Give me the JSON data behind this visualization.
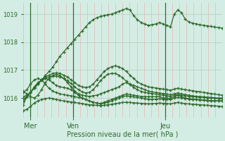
{
  "xlabel": "Pression niveau de la mer( hPa )",
  "bg_color": "#d4ede4",
  "line_color": "#2d6b2d",
  "ylim": [
    1015.3,
    1019.4
  ],
  "xlim": [
    0,
    56
  ],
  "yticks": [
    1016,
    1017,
    1018,
    1019
  ],
  "xtick_labels": [
    "Mer",
    "Ven",
    "Jeu"
  ],
  "xtick_positions": [
    2,
    14,
    40
  ],
  "vline_positions": [
    2,
    14,
    40
  ],
  "series": [
    [
      1015.75,
      1016.05,
      1016.2,
      1016.35,
      1016.5,
      1016.65,
      1016.8,
      1016.95,
      1017.1,
      1017.3,
      1017.5,
      1017.65,
      1017.8,
      1017.95,
      1018.1,
      1018.25,
      1018.4,
      1018.55,
      1018.7,
      1018.8,
      1018.87,
      1018.92,
      1018.95,
      1018.98,
      1019.0,
      1019.05,
      1019.1,
      1019.15,
      1019.2,
      1019.15,
      1018.95,
      1018.8,
      1018.7,
      1018.65,
      1018.6,
      1018.62,
      1018.65,
      1018.7,
      1018.65,
      1018.6,
      1018.55,
      1019.0,
      1019.15,
      1019.05,
      1018.82,
      1018.72,
      1018.68,
      1018.65,
      1018.62,
      1018.6,
      1018.58,
      1018.56,
      1018.54,
      1018.52,
      1018.5
    ],
    [
      1016.05,
      1016.1,
      1016.2,
      1016.35,
      1016.5,
      1016.65,
      1016.7,
      1016.65,
      1016.55,
      1016.45,
      1016.4,
      1016.38,
      1016.35,
      1016.3,
      1016.2,
      1016.1,
      1016.0,
      1015.95,
      1015.9,
      1015.85,
      1015.82,
      1015.8,
      1015.85,
      1015.9,
      1015.95,
      1016.0,
      1016.05,
      1016.1,
      1016.15,
      1016.12,
      1016.1,
      1016.08,
      1016.06,
      1016.05,
      1016.05,
      1016.05,
      1016.05,
      1016.05,
      1016.0,
      1016.0,
      1015.98,
      1016.05,
      1016.1,
      1016.05,
      1016.0,
      1015.98,
      1015.96,
      1015.95,
      1015.94,
      1015.93,
      1015.92,
      1015.91,
      1015.9,
      1015.9,
      1015.9
    ],
    [
      1016.2,
      1016.3,
      1016.5,
      1016.65,
      1016.7,
      1016.65,
      1016.5,
      1016.35,
      1016.25,
      1016.2,
      1016.15,
      1016.12,
      1016.1,
      1016.08,
      1016.05,
      1016.02,
      1016.0,
      1015.95,
      1015.9,
      1015.85,
      1015.82,
      1015.8,
      1015.82,
      1015.85,
      1015.9,
      1015.95,
      1016.0,
      1016.05,
      1016.08,
      1016.06,
      1016.04,
      1016.02,
      1016.0,
      1015.98,
      1015.96,
      1015.95,
      1015.96,
      1015.97,
      1015.96,
      1015.95,
      1015.94,
      1016.0,
      1016.02,
      1016.0,
      1015.98,
      1015.96,
      1015.95,
      1015.94,
      1015.93,
      1015.92,
      1015.91,
      1015.9,
      1015.9,
      1015.9,
      1015.9
    ],
    [
      1015.55,
      1015.6,
      1015.7,
      1015.82,
      1015.9,
      1015.95,
      1015.98,
      1016.0,
      1015.98,
      1015.95,
      1015.92,
      1015.9,
      1015.88,
      1015.86,
      1015.84,
      1015.82,
      1015.8,
      1015.78,
      1015.76,
      1015.75,
      1015.74,
      1015.73,
      1015.74,
      1015.76,
      1015.78,
      1015.8,
      1015.82,
      1015.84,
      1015.85,
      1015.84,
      1015.83,
      1015.82,
      1015.81,
      1015.8,
      1015.79,
      1015.8,
      1015.81,
      1015.82,
      1015.81,
      1015.8,
      1015.79,
      1015.82,
      1015.84,
      1015.82,
      1015.8,
      1015.79,
      1015.78,
      1015.77,
      1015.76,
      1015.75,
      1015.74,
      1015.73,
      1015.72,
      1015.71,
      1015.7
    ],
    [
      1016.25,
      1016.15,
      1016.05,
      1016.0,
      1016.1,
      1016.3,
      1016.55,
      1016.7,
      1016.8,
      1016.85,
      1016.8,
      1016.7,
      1016.55,
      1016.4,
      1016.25,
      1016.15,
      1016.1,
      1016.08,
      1016.06,
      1016.08,
      1016.1,
      1016.15,
      1016.2,
      1016.25,
      1016.3,
      1016.35,
      1016.4,
      1016.5,
      1016.55,
      1016.5,
      1016.45,
      1016.4,
      1016.35,
      1016.3,
      1016.25,
      1016.22,
      1016.2,
      1016.18,
      1016.16,
      1016.14,
      1016.12,
      1016.15,
      1016.18,
      1016.15,
      1016.12,
      1016.1,
      1016.08,
      1016.06,
      1016.05,
      1016.04,
      1016.03,
      1016.02,
      1016.01,
      1016.0,
      1016.0
    ],
    [
      1015.9,
      1016.05,
      1016.2,
      1016.4,
      1016.55,
      1016.65,
      1016.75,
      1016.82,
      1016.88,
      1016.9,
      1016.88,
      1016.82,
      1016.75,
      1016.65,
      1016.55,
      1016.45,
      1016.4,
      1016.38,
      1016.4,
      1016.5,
      1016.65,
      1016.8,
      1016.95,
      1017.05,
      1017.12,
      1017.15,
      1017.12,
      1017.05,
      1016.95,
      1016.82,
      1016.7,
      1016.58,
      1016.5,
      1016.45,
      1016.4,
      1016.38,
      1016.36,
      1016.34,
      1016.32,
      1016.3,
      1016.28,
      1016.32,
      1016.35,
      1016.32,
      1016.3,
      1016.28,
      1016.26,
      1016.24,
      1016.22,
      1016.2,
      1016.18,
      1016.16,
      1016.14,
      1016.12,
      1016.1
    ],
    [
      1015.95,
      1016.05,
      1016.2,
      1016.38,
      1016.52,
      1016.62,
      1016.7,
      1016.75,
      1016.78,
      1016.78,
      1016.75,
      1016.7,
      1016.62,
      1016.52,
      1016.4,
      1016.3,
      1016.22,
      1016.18,
      1016.2,
      1016.3,
      1016.45,
      1016.62,
      1016.75,
      1016.85,
      1016.88,
      1016.88,
      1016.82,
      1016.72,
      1016.6,
      1016.48,
      1016.38,
      1016.3,
      1016.24,
      1016.2,
      1016.18,
      1016.16,
      1016.14,
      1016.12,
      1016.1,
      1016.08,
      1016.06,
      1016.1,
      1016.12,
      1016.1,
      1016.08,
      1016.06,
      1016.05,
      1016.04,
      1016.03,
      1016.02,
      1016.01,
      1016.0,
      1015.99,
      1015.98,
      1015.97
    ]
  ]
}
